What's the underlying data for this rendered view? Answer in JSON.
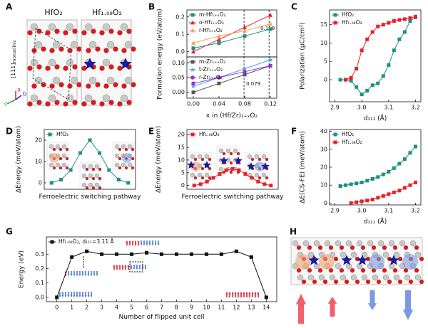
{
  "panel_labels": [
    "A",
    "B",
    "C",
    "D",
    "E",
    "F",
    "G",
    "H"
  ],
  "panel_a": {
    "left_title": "HfO₂",
    "right_title": "Hf₁.₀₈O₂",
    "direction": "[111]",
    "direction_sub": "monoclinic",
    "axes": [
      "c",
      "a",
      "b"
    ]
  },
  "chart_data": [
    {
      "type": "line",
      "ylabel": "Formation energy (eV/atom)",
      "x": [
        0,
        0.04,
        0.08,
        0.12
      ],
      "xlim": [
        -0.01,
        0.13
      ],
      "ylim": [
        -0.03,
        0.24
      ],
      "yticks": [
        {
          "value": 0,
          "label": "0.0"
        },
        0.1,
        0.2
      ],
      "legend": "upper left",
      "annotations": [
        {
          "value": 0.079,
          "label": "0.079"
        },
        {
          "value": 0.118,
          "label": "0.118"
        }
      ],
      "series": [
        {
          "name": "m-Hf₁₊ₓO₂",
          "color": "#1f8f86",
          "marker": "square",
          "values": [
            0.02,
            0.05,
            0.09,
            0.13
          ]
        },
        {
          "name": "o-Hf₁₊ₓO₂",
          "color": "#e8202a",
          "marker": "triangle",
          "values": [
            0.0,
            0.07,
            0.14,
            0.21
          ]
        },
        {
          "name": "r-Hf₁₊ₓO₂",
          "color": "#f5a35c",
          "marker": "triangle",
          "values": [
            0.05,
            0.09,
            0.12,
            0.16
          ]
        }
      ]
    },
    {
      "type": "line",
      "xlabel": "x in (Hf/Zr)₁₊ₓO₂",
      "x": [
        0,
        0.04,
        0.08,
        0.12
      ],
      "xlim": [
        -0.01,
        0.13
      ],
      "xticks": [
        {
          "value": 0,
          "label": "0.00"
        },
        0.04,
        0.08,
        0.12
      ],
      "ylim": [
        -0.02,
        0.12
      ],
      "yticks": [
        {
          "value": 0,
          "label": "0.00"
        },
        0.05,
        {
          "value": 0.1,
          "label": "0.10"
        }
      ],
      "legend": "upper left",
      "series": [
        {
          "name": "m-Zr₁₊ₓO₂",
          "color": "#555555",
          "marker": "square",
          "values": [
            0.0,
            0.03,
            0.06,
            0.09
          ]
        },
        {
          "name": "t-Zr₁₊ₓO₂",
          "color": "#3fa9f5",
          "marker": "star",
          "values": [
            0.02,
            0.05,
            0.08,
            0.11
          ]
        },
        {
          "name": "r-Zr₁₊ₓO₂",
          "color": "#9b30d9",
          "marker": "circle",
          "values": [
            0.03,
            0.05,
            0.07,
            0.09
          ]
        }
      ]
    },
    {
      "type": "line",
      "xlabel": "d₁₁₁ (Å)",
      "ylabel": "Polarization (μC/cm²)",
      "x": [
        2.92,
        2.94,
        2.96,
        2.98,
        3.0,
        3.02,
        3.04,
        3.06,
        3.08,
        3.1,
        3.12,
        3.14,
        3.16,
        3.18,
        3.2
      ],
      "xlim": [
        2.88,
        3.22
      ],
      "xticks": [
        2.9,
        {
          "value": 3,
          "label": "3.0"
        },
        3.1,
        3.2
      ],
      "ylim": [
        -6,
        19
      ],
      "yticks": [
        0,
        5,
        10,
        15
      ],
      "legend": "upper left",
      "series": [
        {
          "name": "HfO₂",
          "color": "#1f8f86",
          "marker": "square",
          "values": [
            0,
            0,
            -0.3,
            -2,
            -4,
            -3,
            -1.5,
            -1,
            1,
            4,
            8,
            11,
            13,
            16,
            17
          ]
        },
        {
          "name": "Hf₁.₀₈O₂",
          "color": "#e8202a",
          "marker": "square",
          "values": [
            null,
            0,
            0.5,
            3,
            8,
            11,
            13,
            14.5,
            15,
            15.5,
            16,
            16.3,
            16.5,
            16.8,
            17.2
          ]
        }
      ]
    },
    {
      "type": "line",
      "xlabel": "Ferroelectric switching pathway",
      "ylabel": "ΔEnergy (meV/atom)",
      "ylim": [
        -3,
        25
      ],
      "yticks": [
        0,
        10,
        20
      ],
      "legend": "upper left",
      "series": [
        {
          "name": "HfO₂",
          "color": "#1f8f86",
          "marker": "square",
          "values": [
            0,
            1.5,
            6,
            14,
            20,
            14,
            6,
            1.5,
            0
          ]
        }
      ]
    },
    {
      "type": "line",
      "xlabel": "Ferroelectric switching pathway",
      "ylabel": "ΔEnergy (meV/atom)",
      "ylim": [
        -1.5,
        22
      ],
      "yticks": [
        0,
        5,
        10,
        15,
        20
      ],
      "legend": "upper left",
      "series": [
        {
          "name": "Hf₁.₀₈O₂",
          "color": "#e8202a",
          "marker": "square",
          "values": [
            0,
            0.5,
            1.5,
            3,
            4.5,
            6,
            6.5,
            6,
            4.5,
            3,
            1.5,
            0.5,
            0
          ]
        }
      ]
    },
    {
      "type": "line",
      "xlabel": "d₁₁₁ (Å)",
      "ylabel": "ΔE(CS-FE) (meV/atom)",
      "x": [
        2.92,
        2.94,
        2.96,
        2.98,
        3.0,
        3.02,
        3.04,
        3.06,
        3.08,
        3.1,
        3.12,
        3.14,
        3.16,
        3.18,
        3.2
      ],
      "xlim": [
        2.88,
        3.22
      ],
      "xticks": [
        2.9,
        {
          "value": 3,
          "label": "3.0"
        },
        3.1,
        3.2
      ],
      "ylim": [
        -1,
        41
      ],
      "yticks": [
        0,
        10,
        20,
        30,
        40
      ],
      "legend": "upper left",
      "series": [
        {
          "name": "HfO₂",
          "color": "#1f8f86",
          "marker": "square",
          "values": [
            9.5,
            10,
            10.5,
            11,
            11.5,
            12.5,
            13.5,
            14.5,
            16,
            17.5,
            19.5,
            22,
            24.5,
            28,
            31.5
          ]
        },
        {
          "name": "Hf₁.₀₈O₂",
          "color": "#e8202a",
          "marker": "square",
          "values": [
            null,
            null,
            0,
            0.5,
            1,
            1.5,
            2,
            3,
            4,
            5,
            6,
            7,
            8.5,
            10,
            11.5
          ]
        }
      ]
    },
    {
      "type": "line",
      "xlabel": "Number of flipped unit cell",
      "ylabel": "Energy (eV)",
      "x": [
        0,
        1,
        2,
        3,
        4,
        5,
        6,
        7,
        8,
        9,
        10,
        11,
        12,
        13,
        14
      ],
      "xlim": [
        -0.7,
        14.7
      ],
      "xticks": [
        0,
        1,
        2,
        3,
        4,
        5,
        6,
        7,
        8,
        9,
        10,
        11,
        12,
        13,
        14
      ],
      "ylim": [
        -0.03,
        0.42
      ],
      "yticks": [
        {
          "value": 0,
          "label": "0.0"
        },
        0.1,
        0.2,
        0.3
      ],
      "legend": "upper left",
      "series": [
        {
          "name": "Hf₁.₀₈O₂, d₁₁₁=3.11 Å",
          "color": "#111111",
          "marker": "square",
          "values": [
            0,
            0.28,
            0.32,
            0.3,
            0.3,
            0.3,
            0.31,
            0.3,
            0.3,
            0.3,
            0.3,
            0.3,
            0.32,
            0.28,
            0
          ]
        }
      ]
    }
  ]
}
